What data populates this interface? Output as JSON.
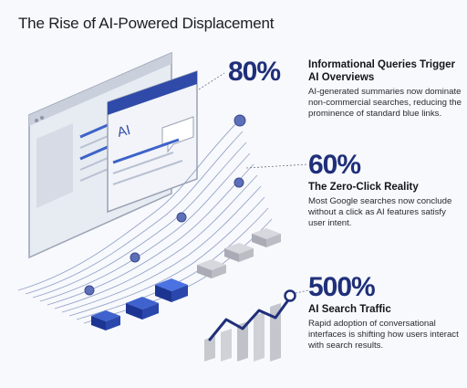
{
  "title": "The Rise of AI-Powered Displacement",
  "illustration": {
    "ai_badge": "AI",
    "colors": {
      "navy": "#1f2f7a",
      "blue": "#2f57c7",
      "window": "#eef1f7",
      "line": "#8d9bc4",
      "gray": "#c7c9cf"
    }
  },
  "stats": [
    {
      "value": "80%",
      "heading": "Informational Queries Trigger AI Overviews",
      "description": "AI-generated summaries now dominate non-commercial searches, reducing the prominence of standard blue links."
    },
    {
      "value": "60%",
      "heading": "The Zero-Click Reality",
      "description": "Most Google searches now conclude without a click as AI features satisfy user intent."
    },
    {
      "value": "500%",
      "heading": "AI Search Traffic",
      "description": "Rapid adoption of conversational interfaces is shifting how users interact with search results."
    }
  ]
}
